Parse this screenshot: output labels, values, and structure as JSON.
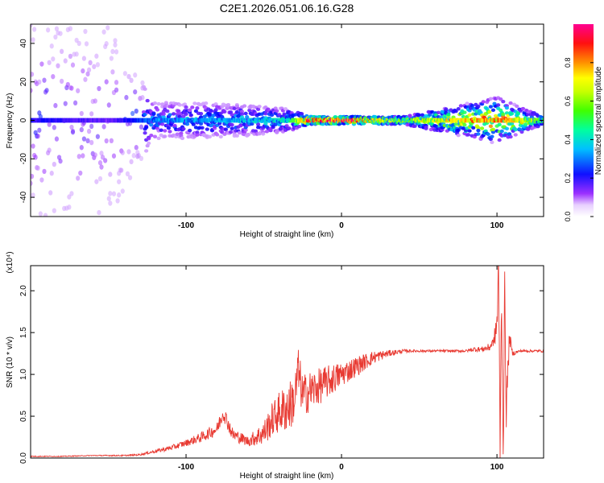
{
  "figure_title": "C2E1.2026.051.06.16.G28",
  "colors": {
    "snr_line": "#e83a32",
    "axis": "#000000",
    "background": "#ffffff"
  },
  "chart_data": [
    {
      "type": "heatmap",
      "title": "C2E1.2026.051.06.16.G28",
      "xlabel": "Height of straight line (km)",
      "ylabel": "Frequency (Hz)",
      "xlim": [
        -200,
        130
      ],
      "ylim": [
        -50,
        50
      ],
      "x_ticks": [
        -100,
        0,
        100
      ],
      "x_tick_labels": [
        "-100",
        "0",
        "100"
      ],
      "y_ticks": [
        -40,
        -20,
        0,
        20,
        40
      ],
      "y_tick_labels": [
        "-40",
        "-20",
        "0",
        "20",
        "40"
      ],
      "colorbar": {
        "label": "Normalized spectral amplitude",
        "range": [
          0,
          1
        ],
        "ticks": [
          0.0,
          0.2,
          0.4,
          0.6,
          0.8
        ],
        "tick_labels": [
          "0.0",
          "0.2",
          "0.4",
          "0.6",
          "0.8"
        ],
        "colormap": [
          "#ffffff",
          "#9b30ff",
          "#0000ff",
          "#00bfff",
          "#00ff7f",
          "#7fff00",
          "#ffff00",
          "#ff8000",
          "#ff0000",
          "#ff00a0"
        ]
      },
      "description_points": [
        {
          "x": -190,
          "spread_hz": 50,
          "amplitude": 0.2
        },
        {
          "x": -150,
          "spread_hz": 50,
          "amplitude": 0.15
        },
        {
          "x": -120,
          "spread_hz": 10,
          "amplitude": 0.3
        },
        {
          "x": -60,
          "spread_hz": 8,
          "amplitude": 0.35
        },
        {
          "x": -35,
          "spread_hz": 6,
          "amplitude": 0.4
        },
        {
          "x": -20,
          "spread_hz": 2,
          "amplitude": 0.9
        },
        {
          "x": 0,
          "spread_hz": 2,
          "amplitude": 0.9
        },
        {
          "x": 40,
          "spread_hz": 2,
          "amplitude": 0.55
        },
        {
          "x": 100,
          "spread_hz": 12,
          "amplitude": 0.8
        },
        {
          "x": 130,
          "spread_hz": 2,
          "amplitude": 0.5
        }
      ]
    },
    {
      "type": "line",
      "xlabel": "Height of straight line (km)",
      "ylabel": "SNR (10 * v/v)",
      "scale_label": "(x10⁴)",
      "xlim": [
        -200,
        130
      ],
      "ylim": [
        0,
        2.3
      ],
      "x_ticks": [
        -100,
        0,
        100
      ],
      "x_tick_labels": [
        "-100",
        "0",
        "100"
      ],
      "y_ticks": [
        0.0,
        0.5,
        1.0,
        1.5,
        2.0
      ],
      "y_tick_labels": [
        "0.0",
        "0.5",
        "1.0",
        "1.5",
        "2.0"
      ],
      "series": [
        {
          "name": "SNR",
          "x": [
            -200,
            -180,
            -160,
            -140,
            -130,
            -120,
            -110,
            -100,
            -90,
            -80,
            -76,
            -70,
            -60,
            -50,
            -45,
            -40,
            -35,
            -30,
            -28,
            -25,
            -20,
            -15,
            -10,
            -5,
            0,
            10,
            20,
            30,
            40,
            50,
            60,
            70,
            80,
            85,
            90,
            95,
            98,
            100,
            101,
            102,
            103,
            104,
            105,
            106,
            108,
            110,
            115,
            120,
            130
          ],
          "y": [
            0.02,
            0.02,
            0.03,
            0.03,
            0.04,
            0.08,
            0.12,
            0.18,
            0.25,
            0.35,
            0.55,
            0.28,
            0.2,
            0.3,
            0.45,
            0.55,
            0.6,
            0.7,
            1.05,
            0.75,
            0.8,
            0.85,
            0.9,
            0.95,
            1.0,
            1.1,
            1.2,
            1.25,
            1.28,
            1.28,
            1.28,
            1.28,
            1.28,
            1.3,
            1.3,
            1.32,
            1.4,
            1.6,
            2.25,
            0.2,
            1.9,
            0.15,
            2.0,
            0.6,
            1.45,
            1.25,
            1.28,
            1.28,
            1.28
          ],
          "noise": [
            0.005,
            0.005,
            0.005,
            0.008,
            0.01,
            0.02,
            0.03,
            0.04,
            0.06,
            0.08,
            0.1,
            0.08,
            0.06,
            0.15,
            0.2,
            0.25,
            0.3,
            0.3,
            0.3,
            0.25,
            0.25,
            0.22,
            0.2,
            0.18,
            0.15,
            0.12,
            0.08,
            0.04,
            0.02,
            0.015,
            0.015,
            0.015,
            0.015,
            0.03,
            0.03,
            0.05,
            0.05,
            0.3,
            0.3,
            0.3,
            0.3,
            0.3,
            0.3,
            0.25,
            0.1,
            0.03,
            0.015,
            0.015,
            0.015
          ]
        }
      ]
    }
  ]
}
